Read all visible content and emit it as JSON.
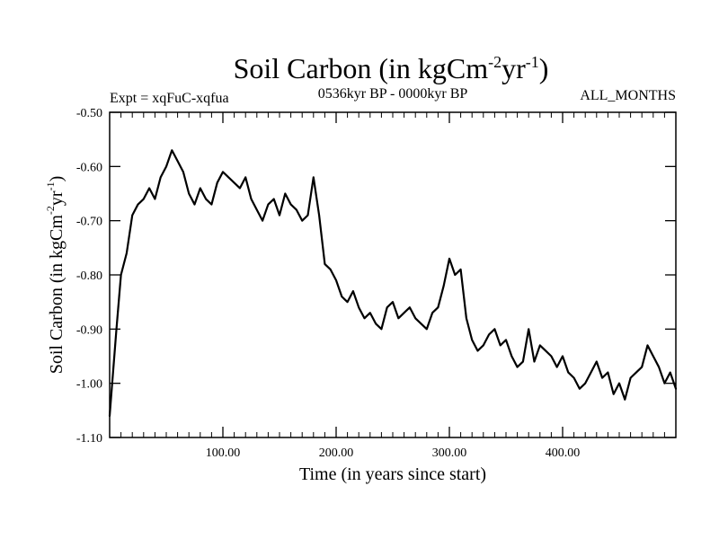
{
  "chart_data": {
    "type": "line",
    "title": {
      "main": "Soil Carbon (in kgCm",
      "sup1": "-2",
      "middle": "yr",
      "sup2": "-1",
      "end": ")"
    },
    "subtitle_left": "Expt = xqFuC-xqfua",
    "subtitle_center": "0536kyr BP - 0000kyr BP",
    "subtitle_right": "ALL_MONTHS",
    "xlabel": "Time (in years since start)",
    "ylabel": {
      "main": "Soil Carbon (in kgCm",
      "sup1": "-2",
      "middle": "yr",
      "sup2": "-1",
      "end": ")"
    },
    "xlim": [
      0,
      500
    ],
    "ylim": [
      -1.1,
      -0.5
    ],
    "x_ticks": [
      {
        "value": 100,
        "label": "100.00"
      },
      {
        "value": 200,
        "label": "200.00"
      },
      {
        "value": 300,
        "label": "300.00"
      },
      {
        "value": 400,
        "label": "400.00"
      }
    ],
    "y_ticks": [
      {
        "value": -0.5,
        "label": "-0.50"
      },
      {
        "value": -0.6,
        "label": "-0.60"
      },
      {
        "value": -0.7,
        "label": "-0.70"
      },
      {
        "value": -0.8,
        "label": "-0.80"
      },
      {
        "value": -0.9,
        "label": "-0.90"
      },
      {
        "value": -1.0,
        "label": "-1.00"
      },
      {
        "value": -1.1,
        "label": "-1.10"
      }
    ],
    "series": [
      {
        "name": "Soil Carbon",
        "x": [
          0,
          3,
          6,
          10,
          15,
          20,
          25,
          30,
          35,
          40,
          45,
          50,
          55,
          60,
          65,
          70,
          75,
          80,
          85,
          90,
          95,
          100,
          105,
          110,
          115,
          120,
          125,
          130,
          135,
          140,
          145,
          150,
          155,
          160,
          165,
          170,
          175,
          180,
          185,
          190,
          195,
          200,
          205,
          210,
          215,
          220,
          225,
          230,
          235,
          240,
          245,
          250,
          255,
          260,
          265,
          270,
          275,
          280,
          285,
          290,
          295,
          300,
          305,
          310,
          315,
          320,
          325,
          330,
          335,
          340,
          345,
          350,
          355,
          360,
          365,
          370,
          375,
          380,
          385,
          390,
          395,
          400,
          405,
          410,
          415,
          420,
          425,
          430,
          435,
          440,
          445,
          450,
          455,
          460,
          465,
          470,
          475,
          480,
          485,
          490,
          495,
          500
        ],
        "values": [
          -1.06,
          -0.98,
          -0.9,
          -0.8,
          -0.76,
          -0.69,
          -0.67,
          -0.66,
          -0.64,
          -0.66,
          -0.62,
          -0.6,
          -0.57,
          -0.59,
          -0.61,
          -0.65,
          -0.67,
          -0.64,
          -0.66,
          -0.67,
          -0.63,
          -0.61,
          -0.62,
          -0.63,
          -0.64,
          -0.62,
          -0.66,
          -0.68,
          -0.7,
          -0.67,
          -0.66,
          -0.69,
          -0.65,
          -0.67,
          -0.68,
          -0.7,
          -0.69,
          -0.62,
          -0.69,
          -0.78,
          -0.79,
          -0.81,
          -0.84,
          -0.85,
          -0.83,
          -0.86,
          -0.88,
          -0.87,
          -0.89,
          -0.9,
          -0.86,
          -0.85,
          -0.88,
          -0.87,
          -0.86,
          -0.88,
          -0.89,
          -0.9,
          -0.87,
          -0.86,
          -0.82,
          -0.77,
          -0.8,
          -0.79,
          -0.88,
          -0.92,
          -0.94,
          -0.93,
          -0.91,
          -0.9,
          -0.93,
          -0.92,
          -0.95,
          -0.97,
          -0.96,
          -0.9,
          -0.96,
          -0.93,
          -0.94,
          -0.95,
          -0.97,
          -0.95,
          -0.98,
          -0.99,
          -1.01,
          -1.0,
          -0.98,
          -0.96,
          -0.99,
          -0.98,
          -1.02,
          -1.0,
          -1.03,
          -0.99,
          -0.98,
          -0.97,
          -0.93,
          -0.95,
          -0.97,
          -1.0,
          -0.98,
          -1.01
        ]
      }
    ]
  }
}
